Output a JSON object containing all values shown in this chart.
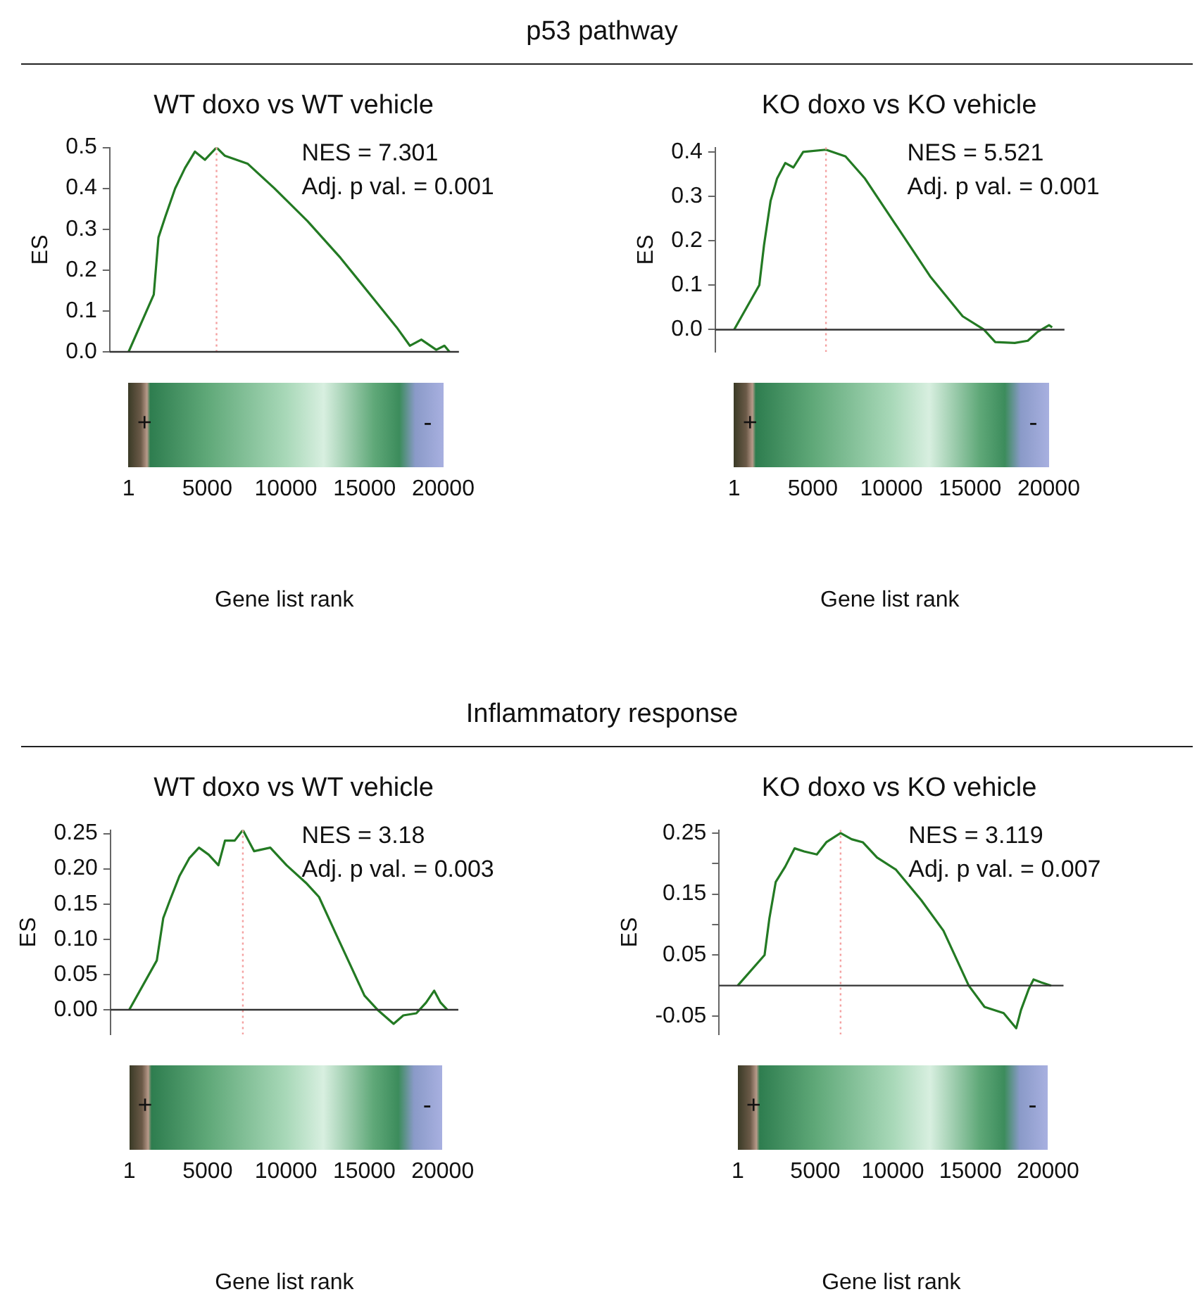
{
  "chart_data": [
    {
      "type": "line",
      "title": "WT doxo vs WT vehicle",
      "xlabel": "Gene list rank",
      "ylabel": "ES",
      "xlim": [
        -1200,
        21000
      ],
      "xticks": [
        1,
        5000,
        10000,
        15000,
        20000
      ],
      "ylim": [
        0,
        0.5
      ],
      "yticks": [
        {
          "value": 0,
          "label": "0.0"
        },
        0.1,
        0.2,
        0.3,
        0.4,
        0.5
      ],
      "series": [
        {
          "color": "#237a23",
          "x": [
            1,
            1600,
            1900,
            2330,
            2960,
            3590,
            4220,
            4850,
            5590,
            6110,
            7580,
            9270,
            11370,
            13470,
            15570,
            17040,
            17880,
            18610,
            19560,
            20080,
            20400
          ],
          "values": [
            0,
            0.14,
            0.28,
            0.33,
            0.4,
            0.45,
            0.49,
            0.47,
            0.5,
            0.48,
            0.46,
            0.4,
            0.32,
            0.23,
            0.13,
            0.06,
            0.015,
            0.03,
            0.005,
            0.015,
            0
          ]
        }
      ],
      "ref_lines": [
        {
          "axis": "x",
          "value": 5590,
          "color": "#f4a0a0",
          "line_style": "dotted"
        },
        {
          "axis": "y",
          "value": 0,
          "color": "#333333"
        }
      ],
      "annotations": [
        "NES = 7.301",
        "Adj. p val. = 0.001",
        "+",
        "-",
        "p53 pathway"
      ]
    },
    {
      "type": "line",
      "title": "KO doxo vs KO vehicle",
      "xlabel": "Gene list rank",
      "ylabel": "ES",
      "xlim": [
        -1200,
        21000
      ],
      "xticks": [
        1,
        5000,
        10000,
        15000,
        20000
      ],
      "ylim": [
        -0.05,
        0.41
      ],
      "yticks": [
        {
          "value": 0,
          "label": "0.0"
        },
        0.1,
        0.2,
        0.3,
        0.4
      ],
      "series": [
        {
          "color": "#237a23",
          "x": [
            1,
            1600,
            1900,
            2320,
            2730,
            3250,
            3770,
            4390,
            5840,
            7080,
            8320,
            10390,
            12460,
            14530,
            15880,
            16600,
            17840,
            18670,
            19290,
            20020,
            20220
          ],
          "values": [
            0,
            0.1,
            0.19,
            0.29,
            0.34,
            0.375,
            0.365,
            0.4,
            0.405,
            0.39,
            0.34,
            0.23,
            0.12,
            0.03,
            0,
            -0.028,
            -0.03,
            -0.025,
            -0.005,
            0.01,
            0.005
          ]
        }
      ],
      "ref_lines": [
        {
          "axis": "x",
          "value": 5840,
          "color": "#f4a0a0",
          "line_style": "dotted"
        },
        {
          "axis": "y",
          "value": 0,
          "color": "#333333"
        }
      ],
      "annotations": [
        "NES = 5.521",
        "Adj. p val. = 0.001",
        "+",
        "-"
      ]
    },
    {
      "type": "line",
      "title": "WT doxo vs WT vehicle",
      "xlabel": "Gene list rank",
      "ylabel": "ES",
      "xlim": [
        -1200,
        21000
      ],
      "xticks": [
        1,
        5000,
        10000,
        15000,
        20000
      ],
      "ylim": [
        -0.035,
        0.255
      ],
      "yticks": [
        {
          "value": 0,
          "label": "0.00"
        },
        0.05,
        {
          "value": 0.1,
          "label": "0.10"
        },
        0.15,
        {
          "value": 0.2,
          "label": "0.20"
        },
        0.25
      ],
      "series": [
        {
          "color": "#237a23",
          "x": [
            1,
            1760,
            2170,
            2590,
            3210,
            3830,
            4450,
            5070,
            5690,
            6110,
            6730,
            7250,
            7970,
            9000,
            10040,
            11280,
            12110,
            13140,
            14180,
            15010,
            15840,
            16870,
            17490,
            18320,
            18940,
            19460,
            19870,
            20290
          ],
          "values": [
            0,
            0.07,
            0.13,
            0.155,
            0.19,
            0.215,
            0.23,
            0.22,
            0.205,
            0.24,
            0.24,
            0.255,
            0.225,
            0.23,
            0.205,
            0.18,
            0.16,
            0.11,
            0.06,
            0.02,
            0,
            -0.02,
            -0.008,
            -0.005,
            0.01,
            0.027,
            0.01,
            0
          ]
        }
      ],
      "ref_lines": [
        {
          "axis": "x",
          "value": 7250,
          "color": "#f4a0a0",
          "line_style": "dotted"
        },
        {
          "axis": "y",
          "value": 0,
          "color": "#333333"
        }
      ],
      "annotations": [
        "NES = 3.18",
        "Adj. p val. = 0.003",
        "+",
        "-",
        "Inflammatory response"
      ]
    },
    {
      "type": "line",
      "title": "KO doxo vs KO vehicle",
      "xlabel": "Gene list rank",
      "ylabel": "ES",
      "xlim": [
        -1200,
        21000
      ],
      "xticks": [
        1,
        5000,
        10000,
        15000,
        20000
      ],
      "ylim": [
        -0.08,
        0.255
      ],
      "yticks": [
        -0.05,
        0.05,
        {
          "value": 0.1,
          "label": null
        },
        0.15,
        {
          "value": 0.2,
          "label": null
        },
        0.25
      ],
      "series": [
        {
          "color": "#237a23",
          "x": [
            1,
            1730,
            2040,
            2450,
            3060,
            3670,
            4280,
            5100,
            5710,
            6630,
            7340,
            8060,
            8980,
            10200,
            11830,
            13260,
            14890,
            15910,
            17140,
            17950,
            18260,
            18770,
            19070,
            19580,
            20200
          ],
          "values": [
            0,
            0.05,
            0.11,
            0.17,
            0.195,
            0.225,
            0.22,
            0.215,
            0.235,
            0.25,
            0.24,
            0.235,
            0.21,
            0.19,
            0.14,
            0.09,
            0,
            -0.035,
            -0.045,
            -0.07,
            -0.04,
            -0.005,
            0.01,
            0.005,
            0
          ]
        }
      ],
      "ref_lines": [
        {
          "axis": "x",
          "value": 6630,
          "color": "#f4a0a0",
          "line_style": "dotted"
        },
        {
          "axis": "y",
          "value": 0,
          "color": "#333333"
        }
      ],
      "annotations": [
        "NES = 3.119",
        "Adj. p val. = 0.007",
        "+",
        "-"
      ]
    }
  ]
}
